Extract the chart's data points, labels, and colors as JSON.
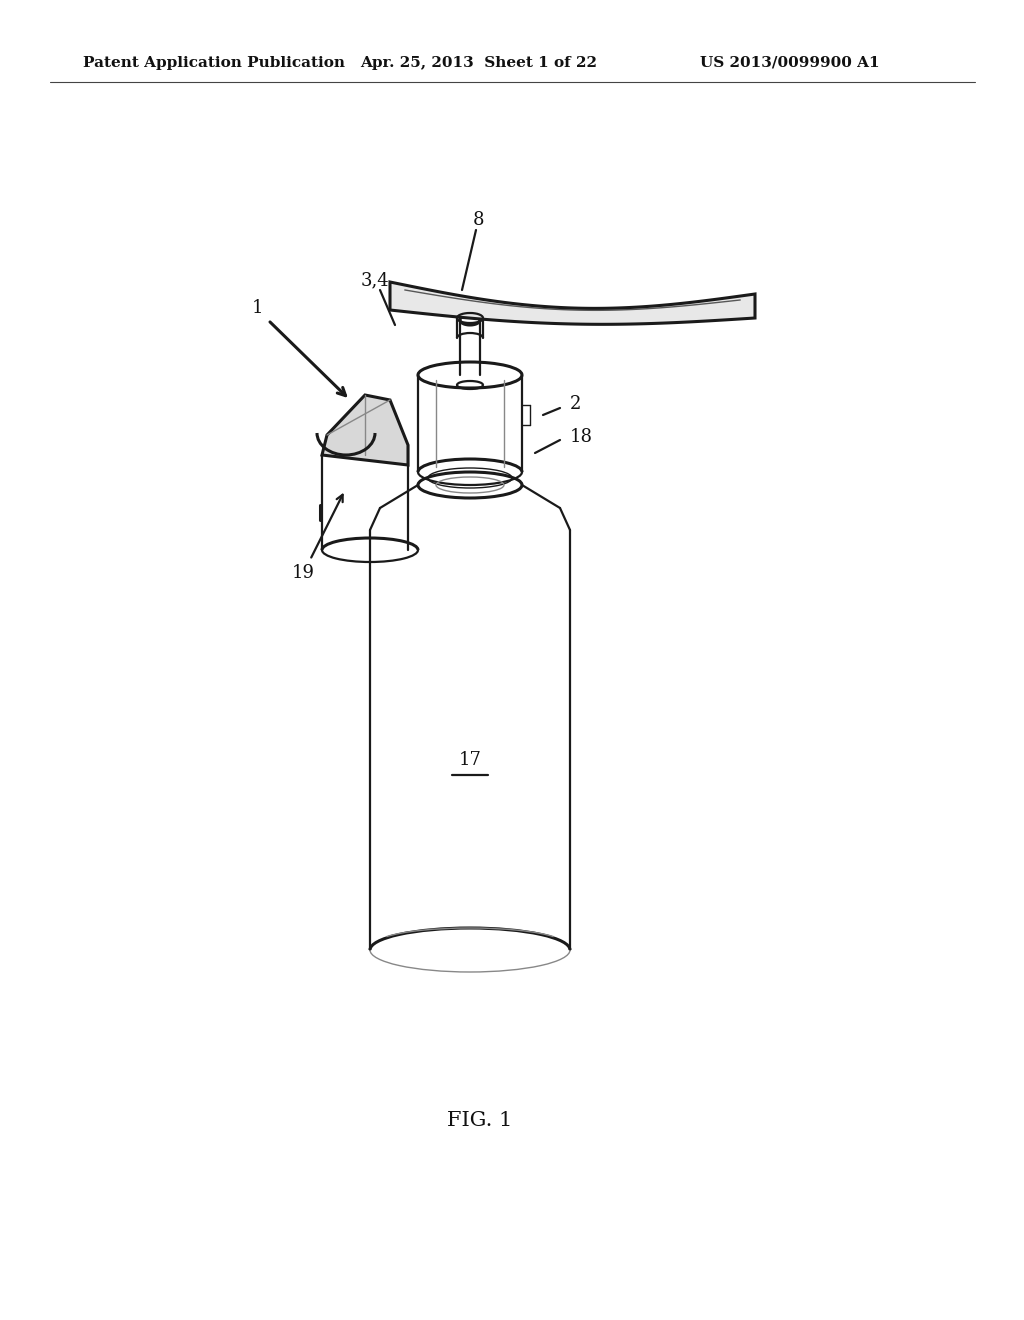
{
  "background_color": "#ffffff",
  "header_left": "Patent Application Publication",
  "header_center": "Apr. 25, 2013  Sheet 1 of 22",
  "header_right": "US 2013/0099900 A1",
  "fig_label": "FIG. 1",
  "line_color": "#1a1a1a",
  "line_color_light": "#888888",
  "header_fontsize": 11,
  "label_fontsize": 13
}
